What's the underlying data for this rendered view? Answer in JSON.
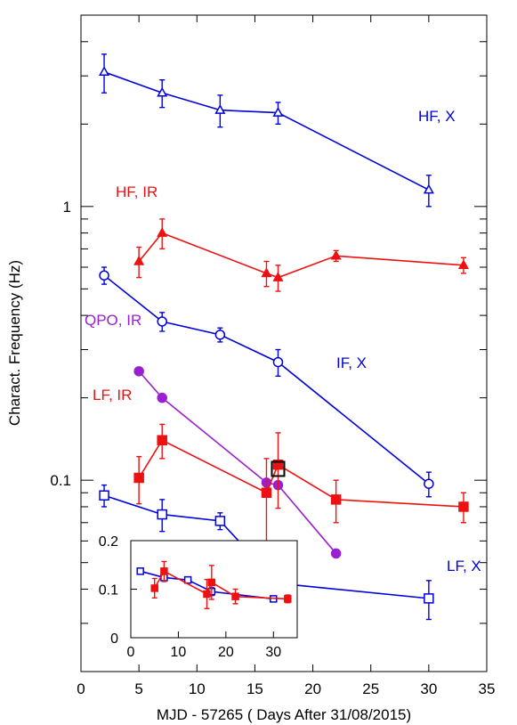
{
  "chart_data": [
    {
      "type": "line",
      "xlabel": "MJD - 57265 ( Days After 31/08/2015)",
      "ylabel": "Charact. Frequency (Hz)",
      "xlim": [
        0,
        35
      ],
      "ylim": [
        0.02,
        5
      ],
      "yscale": "log",
      "x_ticks": [
        "0",
        "5",
        "10",
        "15",
        "20",
        "25",
        "30",
        "35"
      ],
      "y_ticks": [
        {
          "value": 0.1,
          "label": "0.1"
        },
        {
          "value": 1,
          "label": "1"
        }
      ],
      "grid": false,
      "series": [
        {
          "name": "HF, X",
          "color": "#0000dd",
          "marker": "triangle-open",
          "x": [
            2,
            7,
            12,
            17,
            30
          ],
          "y": [
            3.1,
            2.6,
            2.25,
            2.2,
            1.15
          ],
          "err": [
            0.5,
            0.3,
            0.3,
            0.2,
            0.15
          ]
        },
        {
          "name": "HF, IR",
          "color": "#ee1111",
          "marker": "triangle-filled",
          "x": [
            5,
            7,
            16,
            17,
            22,
            33
          ],
          "y": [
            0.63,
            0.8,
            0.57,
            0.55,
            0.66,
            0.61
          ],
          "err": [
            0.08,
            0.1,
            0.06,
            0.06,
            0.03,
            0.04
          ]
        },
        {
          "name": "IF, X",
          "color": "#0000dd",
          "marker": "circle-open",
          "x": [
            2,
            7,
            12,
            17,
            30
          ],
          "y": [
            0.56,
            0.38,
            0.34,
            0.27,
            0.097
          ],
          "err": [
            0.04,
            0.03,
            0.02,
            0.03,
            0.01
          ]
        },
        {
          "name": "QPO, IR",
          "color": "#9a1fd0",
          "marker": "circle-filled",
          "x": [
            5,
            7,
            16,
            17,
            22
          ],
          "y": [
            0.25,
            0.2,
            0.098,
            0.096,
            0.054
          ],
          "err": [
            0,
            0,
            0,
            0,
            0
          ]
        },
        {
          "name": "LF, IR",
          "color": "#ee1111",
          "marker": "square-filled",
          "x": [
            5,
            7,
            16,
            17,
            22,
            33
          ],
          "y": [
            0.102,
            0.14,
            0.09,
            0.114,
            0.085,
            0.08
          ],
          "err": [
            0.02,
            0.02,
            0.03,
            0.035,
            0.015,
            0.01
          ]
        },
        {
          "name": "LF, X",
          "color": "#0000dd",
          "marker": "square-open",
          "x": [
            2,
            7,
            12,
            17,
            30
          ],
          "y": [
            0.088,
            0.075,
            0.071,
            0.042,
            0.037
          ],
          "err": [
            0.008,
            0.01,
            0.005,
            0.004,
            0.006
          ]
        }
      ],
      "highlight": {
        "x": 17,
        "y": 0.11,
        "color": "#000000"
      }
    },
    {
      "type": "line",
      "role": "inset",
      "xlim": [
        0,
        35
      ],
      "ylim": [
        0,
        0.2
      ],
      "y_ticks": [
        "0",
        "0.1",
        "0.2"
      ],
      "x_ticks": [
        "0",
        "10",
        "20",
        "30"
      ],
      "series": [
        {
          "color": "#0000dd",
          "marker": "square-open",
          "x": [
            2,
            7,
            12,
            17,
            30
          ],
          "y": [
            0.137,
            0.124,
            0.119,
            0.095,
            0.08
          ],
          "err": [
            0.006,
            0.008,
            0.004,
            0.008,
            0.004
          ]
        },
        {
          "color": "#ee1111",
          "marker": "square-filled",
          "x": [
            5,
            7,
            16,
            17,
            22,
            33
          ],
          "y": [
            0.102,
            0.137,
            0.09,
            0.114,
            0.085,
            0.08
          ],
          "err": [
            0.02,
            0.02,
            0.03,
            0.035,
            0.015,
            0.008
          ]
        }
      ]
    }
  ]
}
